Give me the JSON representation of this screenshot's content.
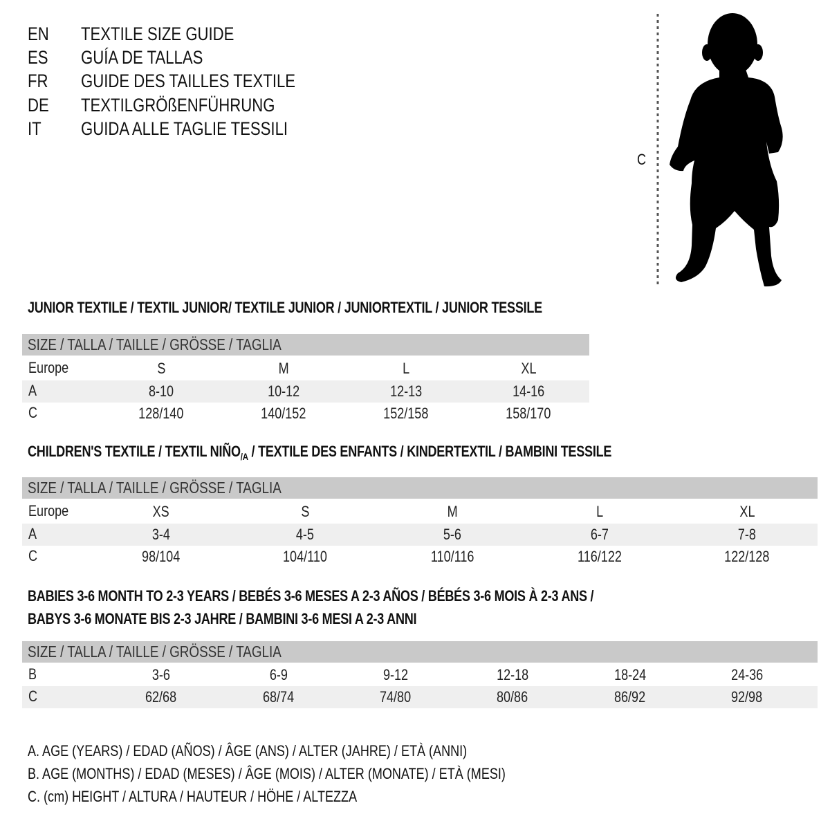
{
  "languages": [
    {
      "code": "EN",
      "title": "TEXTILE SIZE GUIDE"
    },
    {
      "code": "ES",
      "title": "GUÍA DE TALLAS"
    },
    {
      "code": "FR",
      "title": "GUIDE DES TAILLES TEXTILE"
    },
    {
      "code": "DE",
      "title": "TEXTILGRÖßENFÜHRUNG"
    },
    {
      "code": "IT",
      "title": "GUIDA ALLE TAGLIE TESSILI"
    }
  ],
  "figure": {
    "height_label": "C",
    "icon": "child-silhouette"
  },
  "header_label": "SIZE / TALLA / TAILLE / GRÖSSE / TAGLIA",
  "junior": {
    "title": "JUNIOR TEXTILE / TEXTIL JUNIOR/ TEXTILE JUNIOR / JUNIORTEXTIL / JUNIOR TESSILE",
    "rows": [
      {
        "label": "Europe",
        "values": [
          "S",
          "M",
          "L",
          "XL"
        ]
      },
      {
        "label": "A",
        "values": [
          "8-10",
          "10-12",
          "12-13",
          "14-16"
        ]
      },
      {
        "label": "C",
        "values": [
          "128/140",
          "140/152",
          "152/158",
          "158/170"
        ]
      }
    ]
  },
  "children": {
    "title_pre": "CHILDREN'S TEXTILE / TEXTIL NIÑO",
    "title_sub": "/A",
    "title_post": " / TEXTILE DES ENFANTS / KINDERTEXTIL / BAMBINI TESSILE",
    "rows": [
      {
        "label": "Europe",
        "values": [
          "XS",
          "S",
          "M",
          "L",
          "XL"
        ]
      },
      {
        "label": "A",
        "values": [
          "3-4",
          "4-5",
          "5-6",
          "6-7",
          "7-8"
        ]
      },
      {
        "label": "C",
        "values": [
          "98/104",
          "104/110",
          "110/116",
          "116/122",
          "122/128"
        ]
      }
    ]
  },
  "babies": {
    "title_line1": "BABIES 3-6 MONTH TO 2-3 YEARS / BEBÉS 3-6 MESES A 2-3 AÑOS / BÉBÉS 3-6 MOIS À 2-3 ANS /",
    "title_line2": "BABYS 3-6 MONATE BIS 2-3 JAHRE / BAMBINI 3-6 MESI A 2-3 ANNI",
    "rows": [
      {
        "label": "B",
        "values": [
          "3-6",
          "6-9",
          "9-12",
          "12-18",
          "18-24",
          "24-36"
        ]
      },
      {
        "label": "C",
        "values": [
          "62/68",
          "68/74",
          "74/80",
          "80/86",
          "86/92",
          "92/98"
        ]
      }
    ]
  },
  "legend": [
    "A. AGE (YEARS) / EDAD (AÑOS) / ÂGE (ANS) / ALTER (JAHRE) / ETÀ (ANNI)",
    "B. AGE (MONTHS) / EDAD (MESES) / ÂGE (MOIS) / ALTER (MONATE) / ETÀ (MESI)",
    "C. (cm) HEIGHT / ALTURA / HAUTEUR / HÖHE / ALTEZZA"
  ],
  "colors": {
    "header_bg": "#c9c9c9",
    "row_shade": "#efefef",
    "text": "#111111"
  }
}
